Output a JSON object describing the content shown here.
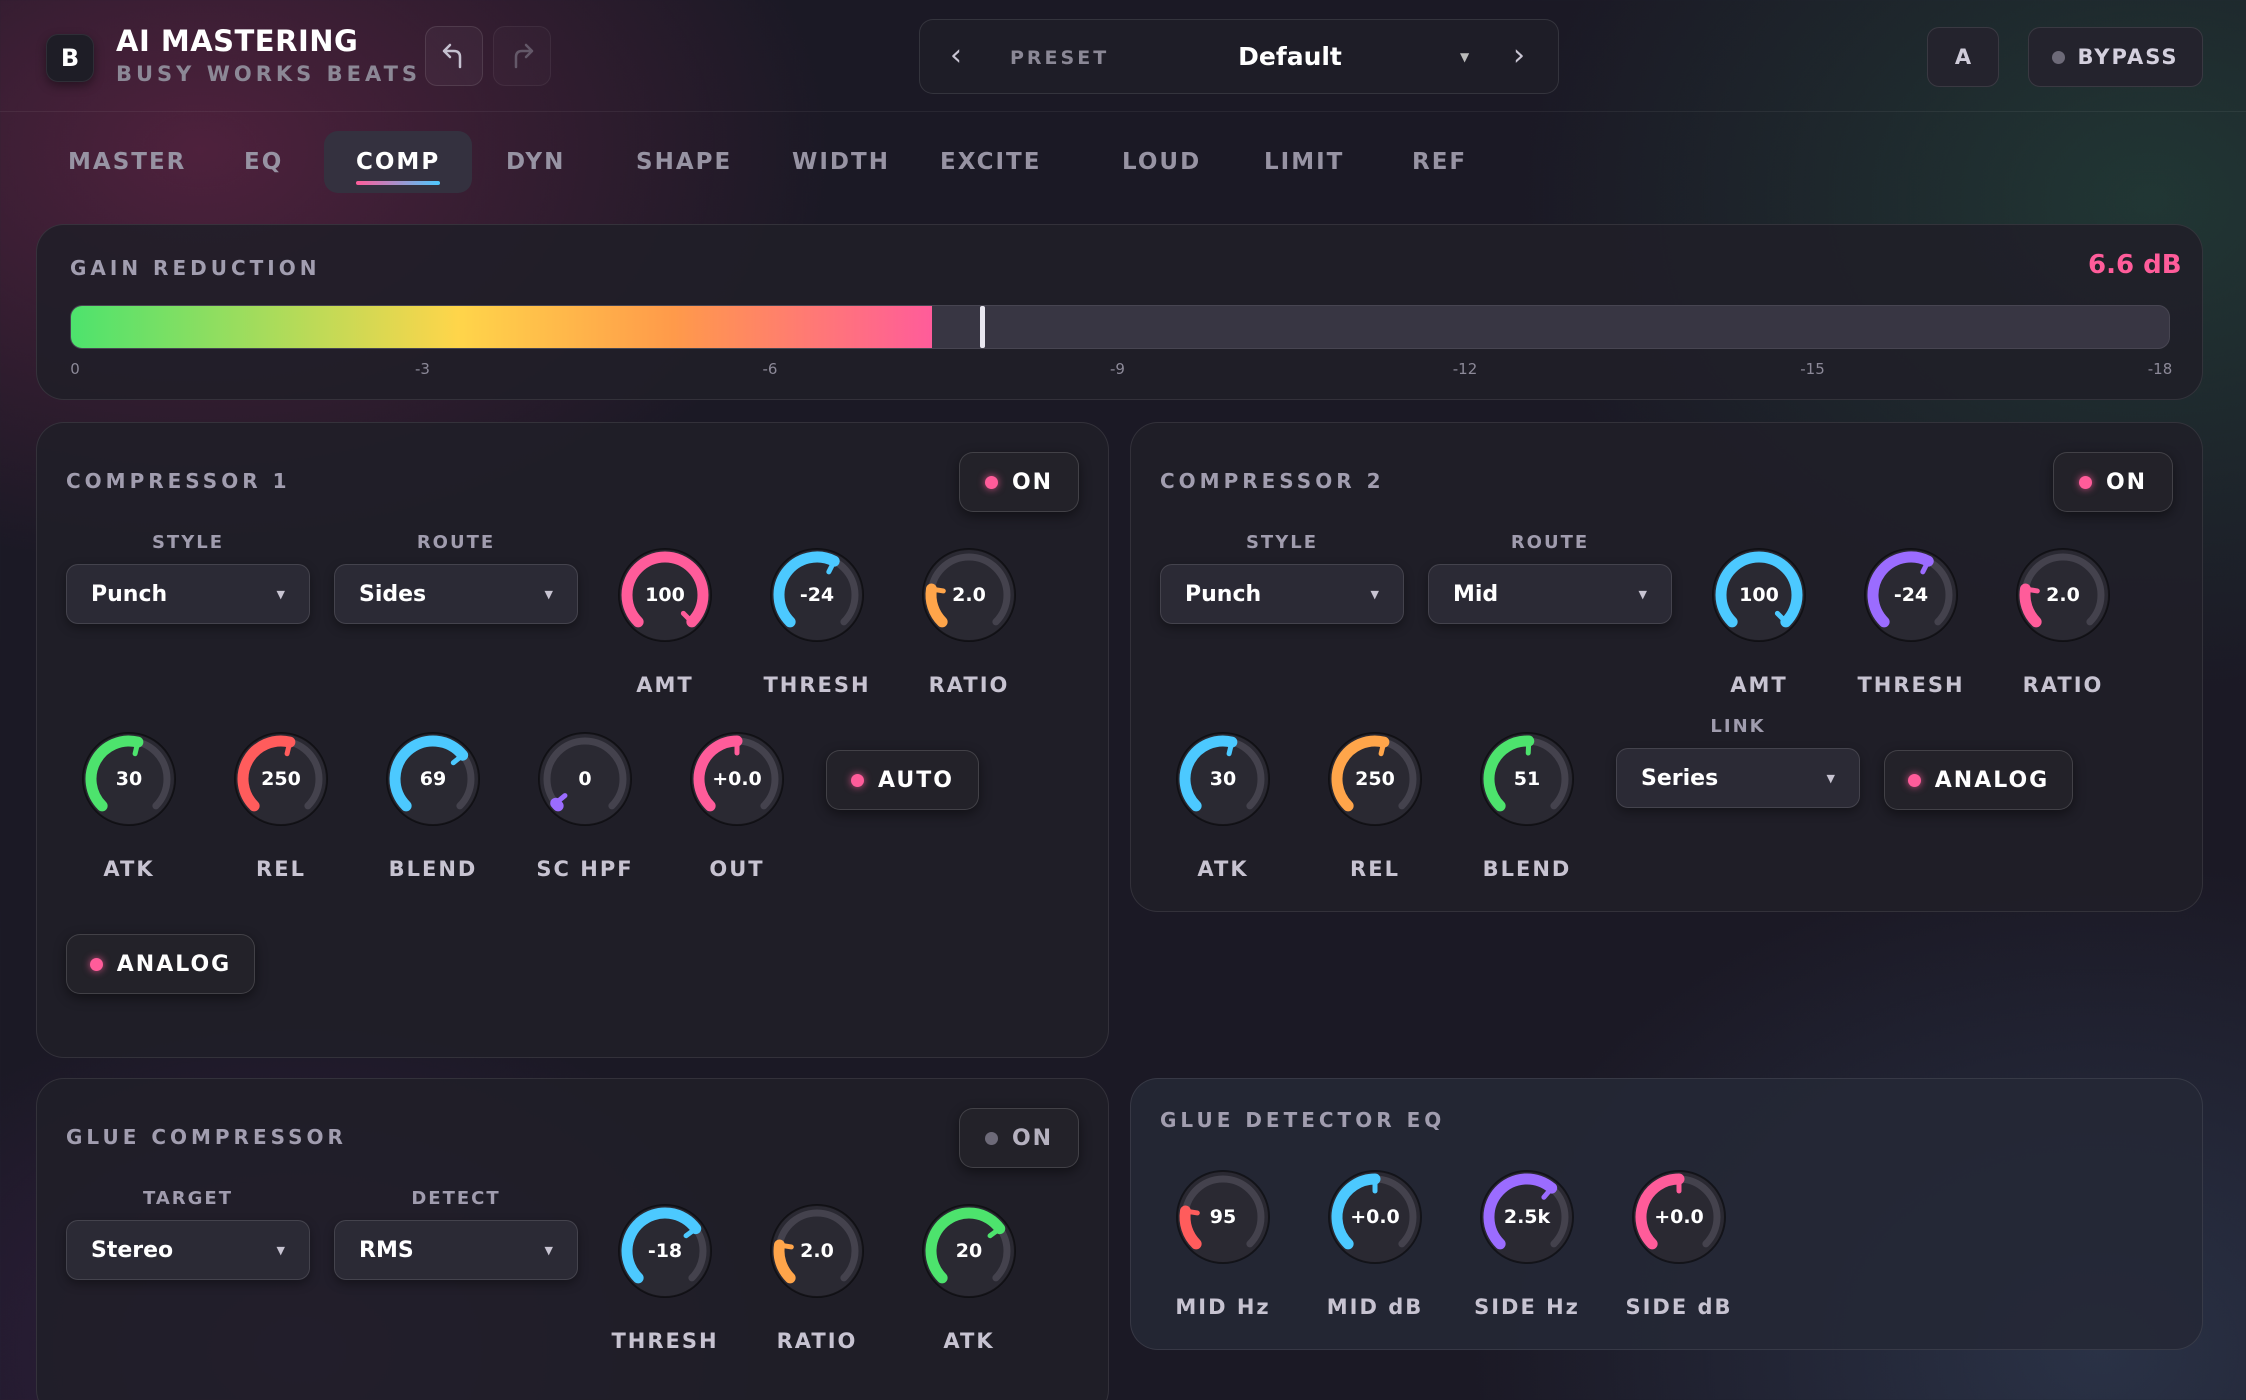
{
  "header": {
    "logo_letter": "B",
    "title": "AI MASTERING",
    "subtitle": "BUSY WORKS BEATS",
    "undo_icon": "undo-icon",
    "redo_icon": "redo-icon",
    "preset_label": "PRESET",
    "preset_value": "Default",
    "ab_label": "A",
    "bypass_label": "BYPASS"
  },
  "tabs": [
    {
      "label": "MASTER",
      "active": false
    },
    {
      "label": "EQ",
      "active": false
    },
    {
      "label": "COMP",
      "active": true
    },
    {
      "label": "DYN",
      "active": false
    },
    {
      "label": "SHAPE",
      "active": false
    },
    {
      "label": "WIDTH",
      "active": false
    },
    {
      "label": "EXCITE",
      "active": false
    },
    {
      "label": "LOUD",
      "active": false
    },
    {
      "label": "LIMIT",
      "active": false
    },
    {
      "label": "REF",
      "active": false
    }
  ],
  "gain_reduction": {
    "title": "GAIN REDUCTION",
    "value": "6.6 dB",
    "fill_fraction": 0.41,
    "marker_fraction": 0.433,
    "ticks": [
      "0",
      "-3",
      "-6",
      "-9",
      "-12",
      "-15",
      "-18"
    ]
  },
  "compressor1": {
    "title": "COMPRESSOR 1",
    "on_label": "ON",
    "style_label": "STYLE",
    "style_value": "Punch",
    "route_label": "ROUTE",
    "route_value": "Sides",
    "auto_label": "AUTO",
    "analog_label": "ANALOG",
    "knobs": [
      {
        "label": "AMT",
        "value": "100",
        "level": 1.0,
        "color": "#ff5c9a"
      },
      {
        "label": "THRESH",
        "value": "-24",
        "level": 0.6,
        "color": "#4cc9ff"
      },
      {
        "label": "RATIO",
        "value": "2.0",
        "level": 0.2,
        "color": "#ffa54a"
      },
      {
        "label": "ATK",
        "value": "30",
        "level": 0.55,
        "color": "#4de36d"
      },
      {
        "label": "REL",
        "value": "250",
        "level": 0.55,
        "color": "#ff5c5c"
      },
      {
        "label": "BLEND",
        "value": "69",
        "level": 0.69,
        "color": "#4cc9ff"
      },
      {
        "label": "SC HPF",
        "value": "0",
        "level": 0.0,
        "color": "#9b6cff"
      },
      {
        "label": "OUT",
        "value": "+0.0",
        "level": 0.5,
        "color": "#ff5c9a"
      }
    ]
  },
  "compressor2": {
    "title": "COMPRESSOR 2",
    "on_label": "ON",
    "style_label": "STYLE",
    "style_value": "Punch",
    "route_label": "ROUTE",
    "route_value": "Mid",
    "link_label": "LINK",
    "link_value": "Series",
    "analog_label": "ANALOG",
    "knobs": [
      {
        "label": "AMT",
        "value": "100",
        "level": 1.0,
        "color": "#4cc9ff"
      },
      {
        "label": "THRESH",
        "value": "-24",
        "level": 0.6,
        "color": "#9b6cff"
      },
      {
        "label": "RATIO",
        "value": "2.0",
        "level": 0.2,
        "color": "#ff5c9a"
      },
      {
        "label": "ATK",
        "value": "30",
        "level": 0.55,
        "color": "#4cc9ff"
      },
      {
        "label": "REL",
        "value": "250",
        "level": 0.55,
        "color": "#ffa54a"
      },
      {
        "label": "BLEND",
        "value": "51",
        "level": 0.51,
        "color": "#4de36d"
      }
    ]
  },
  "glue": {
    "title": "GLUE COMPRESSOR",
    "on_label": "ON",
    "target_label": "TARGET",
    "target_value": "Stereo",
    "detect_label": "DETECT",
    "detect_value": "RMS",
    "knobs": [
      {
        "label": "THRESH",
        "value": "-18",
        "level": 0.7,
        "color": "#4cc9ff"
      },
      {
        "label": "RATIO",
        "value": "2.0",
        "level": 0.2,
        "color": "#ffa54a"
      },
      {
        "label": "ATK",
        "value": "20",
        "level": 0.7,
        "color": "#4de36d"
      }
    ]
  },
  "glue_eq": {
    "title": "GLUE DETECTOR EQ",
    "knobs": [
      {
        "label": "MID Hz",
        "value": "95",
        "level": 0.2,
        "color": "#ff5c5c"
      },
      {
        "label": "MID dB",
        "value": "+0.0",
        "level": 0.5,
        "color": "#4cc9ff"
      },
      {
        "label": "SIDE Hz",
        "value": "2.5k",
        "level": 0.65,
        "color": "#9b6cff"
      },
      {
        "label": "SIDE dB",
        "value": "+0.0",
        "level": 0.5,
        "color": "#ff5c9a"
      }
    ]
  }
}
